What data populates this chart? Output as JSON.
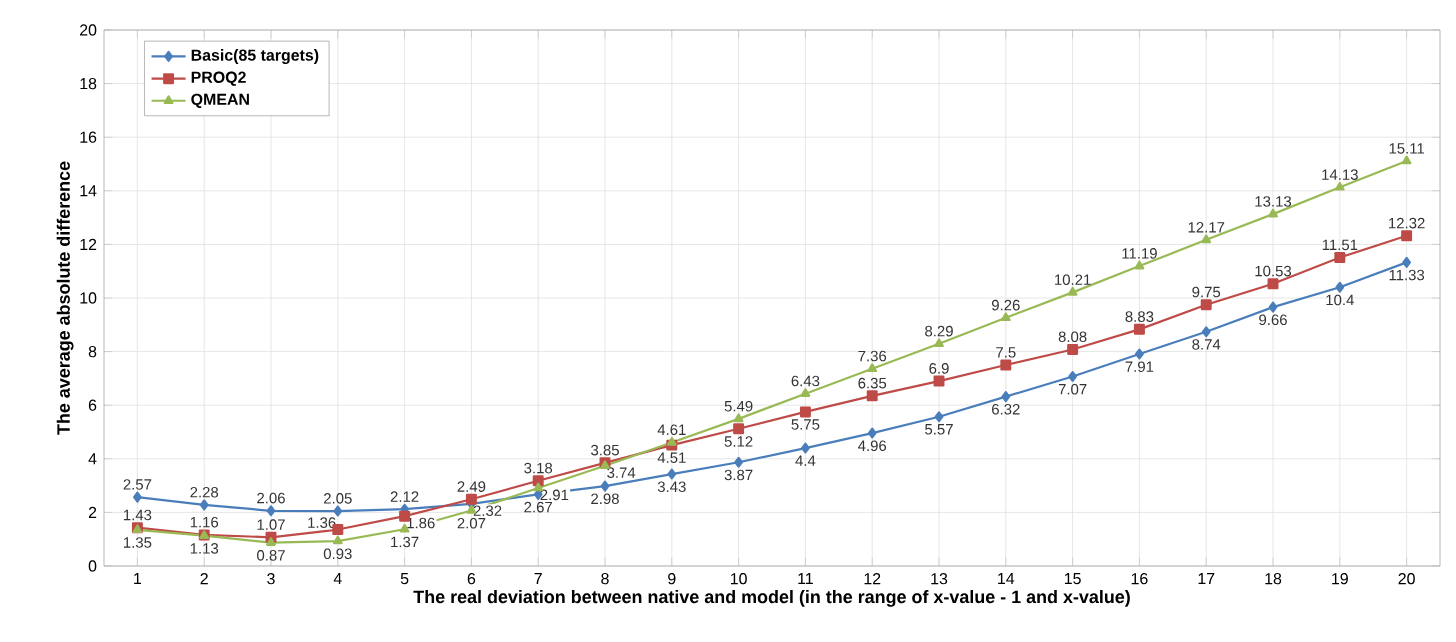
{
  "chart_data": {
    "type": "line",
    "xlabel": "The real deviation between native and model (in the range of x-value - 1 and x-value)",
    "ylabel": "The  average absolute difference",
    "categories": [
      "1",
      "2",
      "3",
      "4",
      "5",
      "6",
      "7",
      "8",
      "9",
      "10",
      "11",
      "12",
      "13",
      "14",
      "15",
      "16",
      "17",
      "18",
      "19",
      "20"
    ],
    "series": [
      {
        "name": "Basic(85 targets)",
        "color": "#4a7ebb",
        "marker": "diamond",
        "values": [
          2.57,
          2.28,
          2.06,
          2.05,
          2.12,
          2.32,
          2.67,
          2.98,
          3.43,
          3.87,
          4.4,
          4.96,
          5.57,
          6.32,
          7.07,
          7.91,
          8.74,
          9.66,
          10.4,
          11.33
        ]
      },
      {
        "name": "PROQ2",
        "color": "#be4b48",
        "marker": "square",
        "values": [
          1.43,
          1.16,
          1.07,
          1.36,
          1.86,
          2.49,
          3.18,
          3.85,
          4.51,
          5.12,
          5.75,
          6.35,
          6.9,
          7.5,
          8.08,
          8.83,
          9.75,
          10.53,
          11.51,
          12.32
        ]
      },
      {
        "name": "QMEAN",
        "color": "#98b954",
        "marker": "triangle",
        "values": [
          1.35,
          1.13,
          0.87,
          0.93,
          1.37,
          2.07,
          2.91,
          3.74,
          4.61,
          5.49,
          6.43,
          7.36,
          8.29,
          9.26,
          10.21,
          11.19,
          12.17,
          13.13,
          14.13,
          15.11
        ]
      }
    ],
    "ylim": [
      0,
      20
    ],
    "yticks": [
      0,
      2,
      4,
      6,
      8,
      10,
      12,
      14,
      16,
      18,
      20
    ],
    "grid": true,
    "legend": "top left",
    "data_labels": true
  }
}
